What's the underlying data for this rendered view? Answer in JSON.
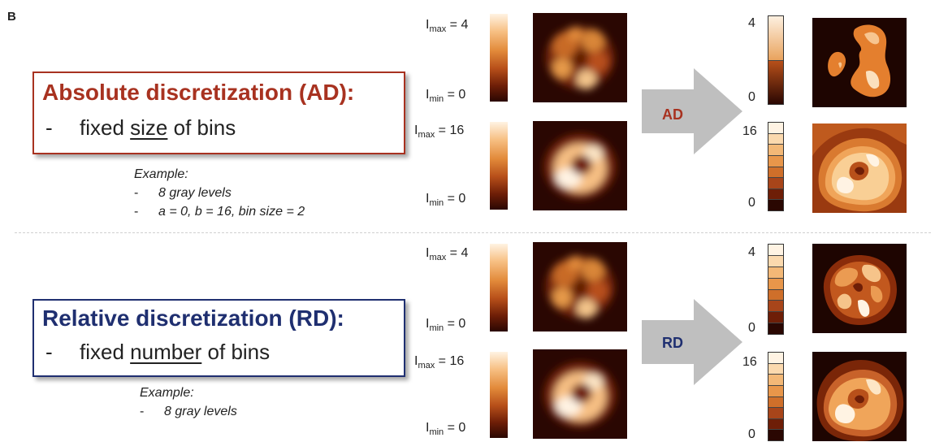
{
  "panel_label": "B",
  "ad_box": {
    "title": "Absolute discretization (AD):",
    "dash": "-",
    "line_pre": "fixed ",
    "line_underlined": "size",
    "line_post": " of bins",
    "color": "#a83220"
  },
  "ad_example": {
    "title": "Example:",
    "items": [
      "8 gray levels",
      "a = 0, b = 16, bin size = 2"
    ]
  },
  "rd_box": {
    "title": "Relative discretization (RD):",
    "dash": "-",
    "line_pre": "fixed ",
    "line_underlined": "number",
    "line_post": " of bins",
    "color": "#1f2f70"
  },
  "rd_example": {
    "title": "Example:",
    "items": [
      "8 gray levels"
    ]
  },
  "colorbar_labels": {
    "imax_4": "4",
    "imax_16": "16",
    "imin_0": "0",
    "i_letter": "I",
    "max_sub": "max",
    "min_sub": "min"
  },
  "arrows": {
    "ad_label": "AD",
    "rd_label": "RD",
    "ad_color": "#a83220",
    "rd_color": "#1f2f70",
    "arrow_color": "#bfbfbf"
  },
  "discrete_bars": {
    "row1": {
      "top": "4",
      "bottom": "0",
      "levels": 2
    },
    "row2": {
      "top": "16",
      "bottom": "0",
      "levels": 8
    },
    "row3": {
      "top": "4",
      "bottom": "0",
      "levels": 8
    },
    "row4": {
      "top": "16",
      "bottom": "0",
      "levels": 8
    }
  },
  "colormap": [
    "#2a0702",
    "#6e1e07",
    "#b8501a",
    "#e28a3a",
    "#f7c084",
    "#fff3e3"
  ]
}
